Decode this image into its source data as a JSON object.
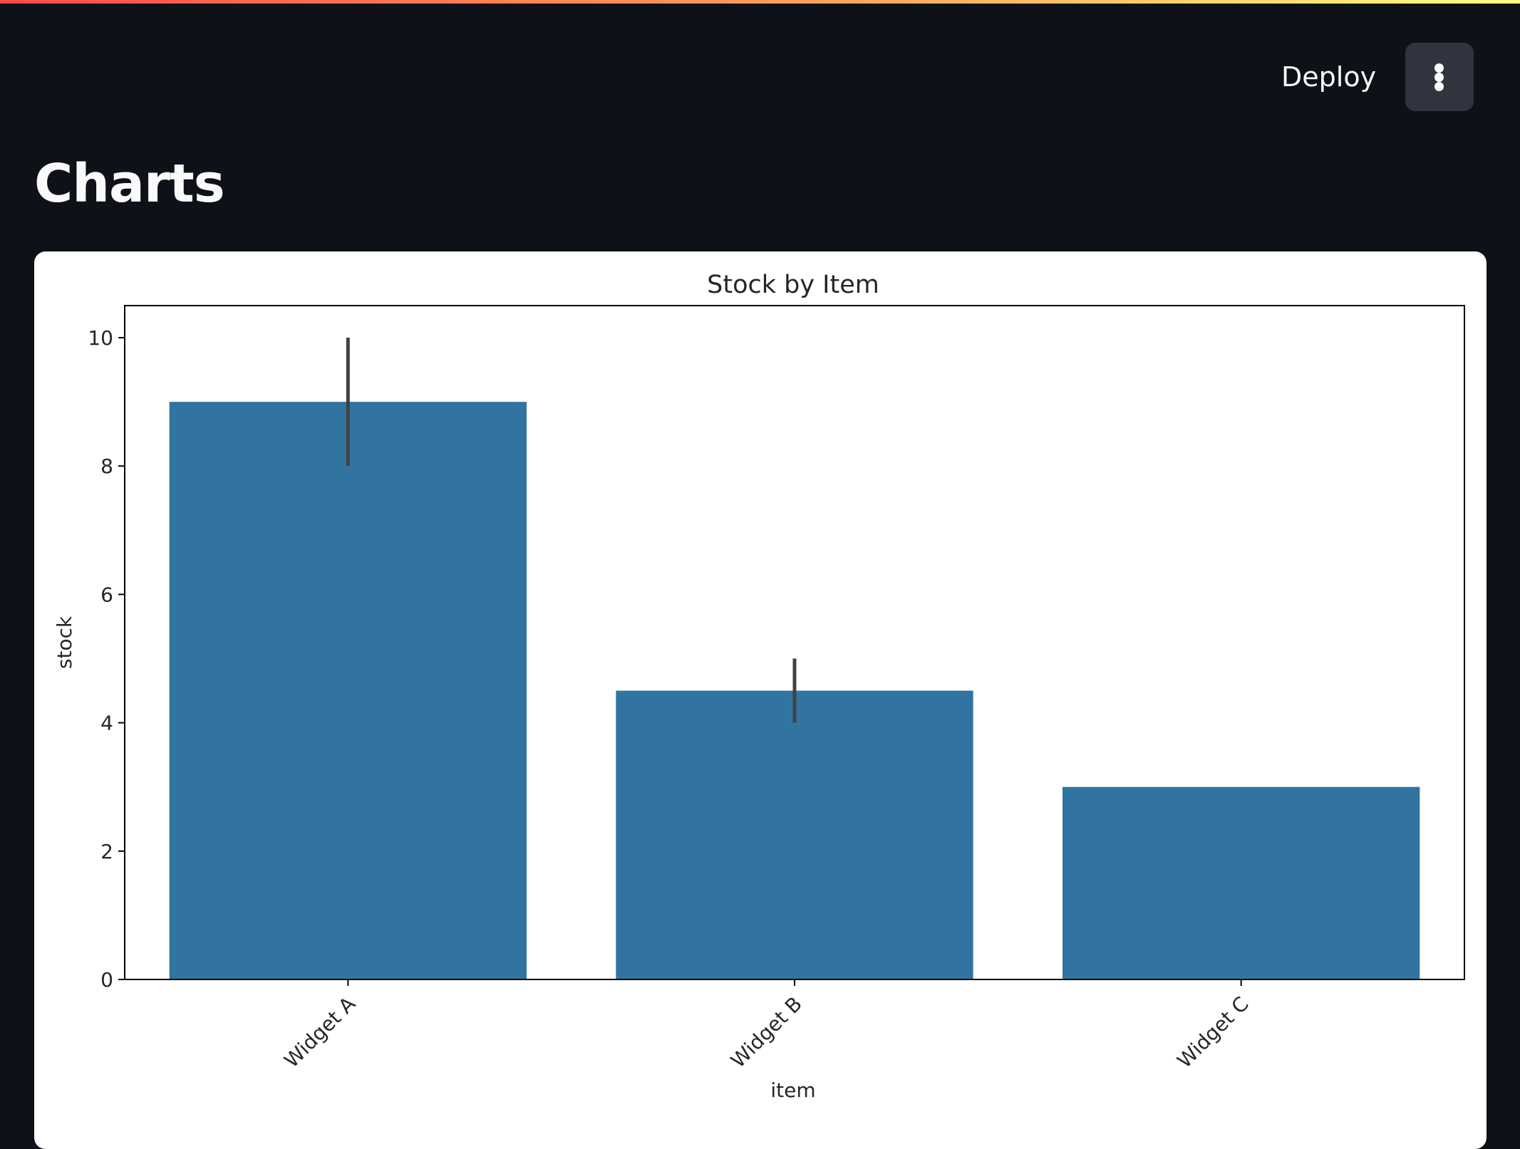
{
  "app": {
    "header_stripe_colors": [
      "#ff4b4b",
      "#ffa35b",
      "#fffd80"
    ],
    "deploy_label": "Deploy",
    "menu_icon": "vertical-ellipsis-icon"
  },
  "page": {
    "title": "Charts"
  },
  "colors": {
    "background": "#0e1117",
    "card": "#ffffff",
    "bar": "#3274a1",
    "error_bar": "#424242"
  },
  "chart_data": {
    "type": "bar",
    "title": "Stock by Item",
    "xlabel": "item",
    "ylabel": "stock",
    "categories": [
      "Widget A",
      "Widget B",
      "Widget C"
    ],
    "values": [
      9,
      4.5,
      3
    ],
    "error_bars": [
      [
        8,
        10
      ],
      [
        4,
        5
      ],
      null
    ],
    "ylim": [
      0,
      10.5
    ],
    "yticks": [
      0,
      2,
      4,
      6,
      8,
      10
    ],
    "grid": false,
    "legend": "none"
  }
}
